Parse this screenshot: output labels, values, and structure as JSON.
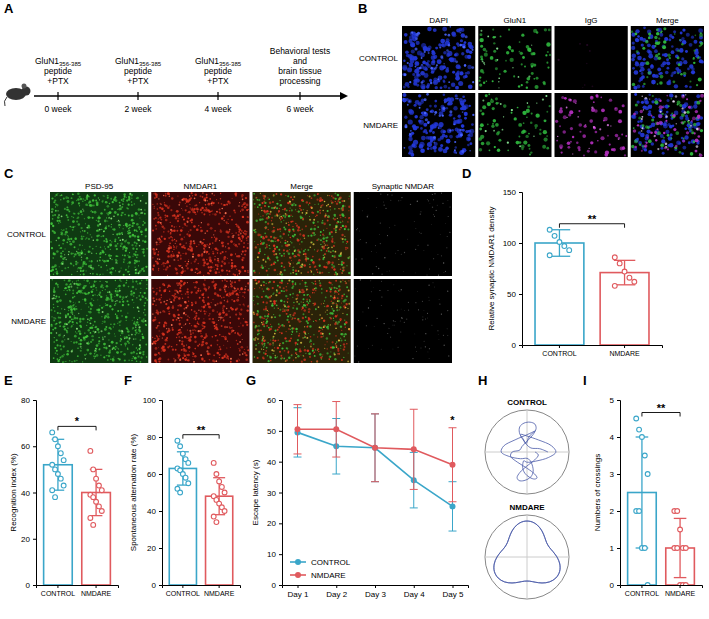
{
  "diagram": {
    "label": "A",
    "timeline": [
      {
        "lines": [
          {
            "text": "GluN1",
            "subscript": "356-385"
          },
          "peptide",
          "+PTX"
        ],
        "time": "0 week"
      },
      {
        "lines": [
          {
            "text": "GluN1",
            "subscript": "356-385"
          },
          "peptide",
          "+PTX"
        ],
        "time": "2 week"
      },
      {
        "lines": [
          {
            "text": "GluN1",
            "subscript": "356-385"
          },
          "peptide",
          "+PTX"
        ],
        "time": "4 week"
      },
      {
        "lines": [
          "Behavioral tests",
          "and",
          "brain tissue",
          "processing"
        ],
        "time": "6 week"
      }
    ]
  },
  "micrographs": [
    {
      "label": "B",
      "columns": [
        "DAPI",
        "GluN1",
        "IgG",
        "Merge"
      ],
      "rows": [
        "CONTROL",
        "NMDARE"
      ]
    },
    {
      "label": "C",
      "columns": [
        "PSD-95",
        "NMDAR1",
        "Merge",
        "Synaptic NMDAR"
      ],
      "rows": [
        "CONTROL",
        "NMDARE"
      ]
    }
  ],
  "maze_tracks": {
    "label": "H",
    "rows": [
      "CONTROL",
      "NMDARE"
    ]
  },
  "chart_data": [
    {
      "label": "D",
      "type": "bar",
      "categories": [
        "CONTROL",
        "NMDARE"
      ],
      "values": [
        100,
        71
      ],
      "errors": [
        13,
        12
      ],
      "points": [
        [
          113,
          107,
          101,
          97,
          93,
          88
        ],
        [
          86,
          80,
          72,
          66,
          62,
          58
        ]
      ],
      "colors": [
        "#3aa6c9",
        "#e05a5e"
      ],
      "y_label": "Relative synaptic NMDAR1 density",
      "ylim": [
        0,
        150
      ],
      "yticks": [
        0,
        50,
        100,
        150
      ],
      "grid": false,
      "annotations": [
        {
          "text": "**"
        }
      ]
    },
    {
      "label": "E",
      "type": "bar",
      "categories": [
        "CONTROL",
        "NMDARE"
      ],
      "values": [
        52,
        40
      ],
      "errors": [
        11,
        10
      ],
      "points": [
        [
          66,
          63,
          60,
          57,
          54,
          52,
          50,
          48,
          46,
          43,
          41,
          38
        ],
        [
          58,
          50,
          46,
          43,
          41,
          39,
          38,
          36,
          34,
          32,
          29,
          26
        ]
      ],
      "colors": [
        "#3aa6c9",
        "#e05a5e"
      ],
      "y_label": "Recognition index (%)",
      "ylim": [
        0,
        80
      ],
      "yticks": [
        0,
        20,
        40,
        60,
        80
      ],
      "grid": false,
      "annotations": [
        {
          "text": "*"
        }
      ]
    },
    {
      "label": "F",
      "type": "bar",
      "categories": [
        "CONTROL",
        "NMDARE"
      ],
      "values": [
        63,
        48
      ],
      "errors": [
        9,
        10
      ],
      "points": [
        [
          78,
          75,
          71,
          68,
          66,
          63,
          62,
          60,
          58,
          55,
          52,
          50
        ],
        [
          66,
          60,
          56,
          53,
          50,
          48,
          46,
          44,
          42,
          40,
          37,
          34
        ]
      ],
      "colors": [
        "#3aa6c9",
        "#e05a5e"
      ],
      "y_label": "Spontaneous alternation rate (%)",
      "ylim": [
        0,
        100
      ],
      "yticks": [
        0,
        20,
        40,
        60,
        80,
        100
      ],
      "grid": false,
      "annotations": [
        {
          "text": "**"
        }
      ]
    },
    {
      "label": "G",
      "type": "line",
      "categories": [
        "Day 1",
        "Day 2",
        "Day 3",
        "Day 4",
        "Day 5"
      ],
      "series": [
        {
          "name": "CONTROL",
          "color": "#3aa6c9",
          "marker": "circle",
          "values": [
            49.5,
            45,
            44.5,
            34,
            25.5
          ],
          "errors": [
            8,
            9,
            11,
            9,
            8
          ]
        },
        {
          "name": "NMDARE",
          "color": "#e05a5e",
          "marker": "circle",
          "values": [
            50.5,
            50.5,
            44.5,
            44,
            39
          ],
          "errors": [
            8,
            9,
            11,
            13,
            12
          ]
        }
      ],
      "y_label": "Escape latency (s)",
      "ylim": [
        0,
        60
      ],
      "yticks": [
        0,
        10,
        20,
        30,
        40,
        50,
        60
      ],
      "grid": false,
      "legend": "lower left",
      "annotations": [
        {
          "text": "*",
          "x": "Day 5"
        }
      ]
    },
    {
      "label": "I",
      "type": "bar",
      "categories": [
        "CONTROL",
        "NMDARE"
      ],
      "values": [
        2.5,
        1.0
      ],
      "errors": [
        1.5,
        0.8
      ],
      "points": [
        [
          4.5,
          4.2,
          4,
          3.5,
          3,
          2,
          2,
          1,
          1,
          0
        ],
        [
          2,
          2,
          1.5,
          1,
          1,
          1,
          1,
          0,
          0,
          0
        ]
      ],
      "colors": [
        "#3aa6c9",
        "#e05a5e"
      ],
      "y_label": "Numbers of crossings",
      "ylim": [
        0,
        5
      ],
      "yticks": [
        0,
        1,
        2,
        3,
        4,
        5
      ],
      "grid": false,
      "annotations": [
        {
          "text": "**"
        }
      ]
    }
  ]
}
